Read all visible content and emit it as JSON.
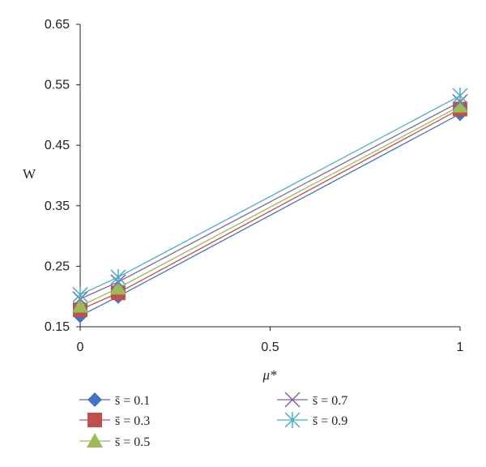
{
  "chart_data": {
    "type": "line",
    "title": "",
    "xlabel": "μ*",
    "ylabel": "W",
    "x": [
      0,
      0.1,
      1
    ],
    "xlim": [
      0,
      1
    ],
    "ylim": [
      0.15,
      0.65
    ],
    "x_ticks": [
      "0",
      "0.5",
      "1"
    ],
    "y_ticks": [
      "0.15",
      "0.25",
      "0.35",
      "0.45",
      "0.55",
      "0.65"
    ],
    "grid": false,
    "legend_position": "bottom",
    "series": [
      {
        "name": "s̄ = 0.1",
        "values": [
          0.168,
          0.2,
          0.502
        ],
        "color": "#4472c4",
        "marker": "diamond"
      },
      {
        "name": "s̄ = 0.3",
        "values": [
          0.178,
          0.206,
          0.51
        ],
        "color": "#c0504d",
        "marker": "square"
      },
      {
        "name": "s̄ = 0.5",
        "values": [
          0.184,
          0.214,
          0.515
        ],
        "color": "#9bbb59",
        "marker": "triangle"
      },
      {
        "name": "s̄ = 0.7",
        "values": [
          0.196,
          0.224,
          0.522
        ],
        "color": "#8064a2",
        "marker": "x"
      },
      {
        "name": "s̄ = 0.9",
        "values": [
          0.203,
          0.232,
          0.532
        ],
        "color": "#4bacc6",
        "marker": "star"
      }
    ]
  }
}
